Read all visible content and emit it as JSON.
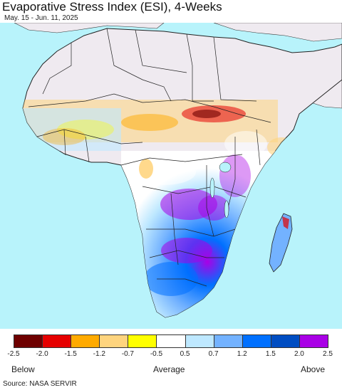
{
  "header": {
    "title": "Evaporative Stress Index (ESI), 4-Weeks",
    "subtitle": "May. 15 - Jun. 11, 2025"
  },
  "map": {
    "region": "Africa",
    "ocean_color": "#b8f3fb",
    "nodata_color": "#efeaf0",
    "border_color": "#222222"
  },
  "legend": {
    "colors": [
      "#6e0000",
      "#e60000",
      "#ffaa00",
      "#fed47e",
      "#ffff00",
      "#ffffff",
      "#bee8ff",
      "#73b2ff",
      "#0070ff",
      "#004dc2",
      "#a900e6"
    ],
    "tick_labels": [
      "-2.5",
      "-2.0",
      "-1.5",
      "-1.2",
      "-0.7",
      "-0.5",
      "0.5",
      "0.7",
      "1.2",
      "1.5",
      "2.0",
      "2.5"
    ],
    "below_label": "Below",
    "average_label": "Average",
    "above_label": "Above"
  },
  "footer": {
    "source": "Source: NASA SERVIR"
  }
}
